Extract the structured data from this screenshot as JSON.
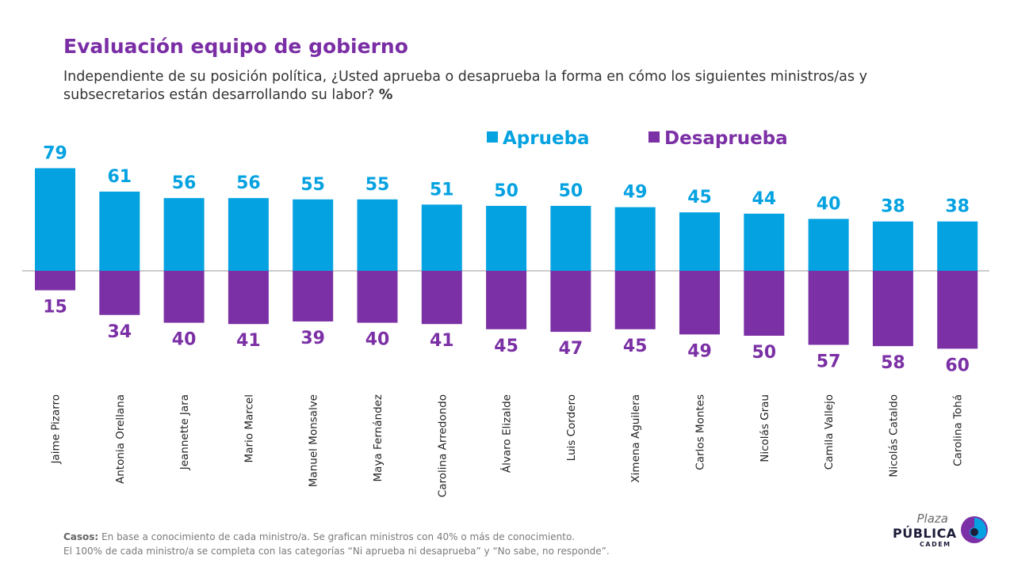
{
  "title": "Evaluación equipo de gobierno",
  "subtitle": "Independiente de su posición política, ¿Usted aprueba o desaprueba la forma en cómo los siguientes ministros/as y subsecretarios están desarrollando su labor?",
  "subtitle_unit": "%",
  "footnote": {
    "label": "Casos:",
    "line1": "En base a conocimiento de cada ministro/a. Se grafican ministros con 40% o más de conocimiento.",
    "line2": "El 100% de cada ministro/a se completa con las categorías “Ni aprueba ni desaprueba” y “No sabe, no responde”."
  },
  "logo": {
    "plaza": "Plaza",
    "publica": "PÚBLICA",
    "cadem": "CADEM",
    "icon": "cadem-swirl-icon"
  },
  "colors": {
    "aprueba": "#05a2e1",
    "desaprueba": "#7b30a5",
    "title": "#7a2ea5"
  },
  "chart_data": {
    "type": "bar",
    "title": "Evaluación equipo de gobierno",
    "categories": [
      "Jaime Pizarro",
      "Antonia Orellana",
      "Jeannette Jara",
      "Mario Marcel",
      "Manuel Monsalve",
      "Maya Fernández",
      "Carolina Arredondo",
      "Álvaro Elizalde",
      "Luis Cordero",
      "Ximena Aguilera",
      "Carlos Montes",
      "Nicolás Grau",
      "Camila Vallejo",
      "Nicolás Cataldo",
      "Carolina Tohá"
    ],
    "series": [
      {
        "name": "Aprueba",
        "values": [
          79,
          61,
          56,
          56,
          55,
          55,
          51,
          50,
          50,
          49,
          45,
          44,
          40,
          38,
          38
        ]
      },
      {
        "name": "Desaprueba",
        "values": [
          15,
          34,
          40,
          41,
          39,
          40,
          41,
          45,
          47,
          45,
          49,
          50,
          57,
          58,
          60
        ]
      }
    ],
    "legend_placement": "top-center",
    "grid": false,
    "ylabel": "%"
  }
}
